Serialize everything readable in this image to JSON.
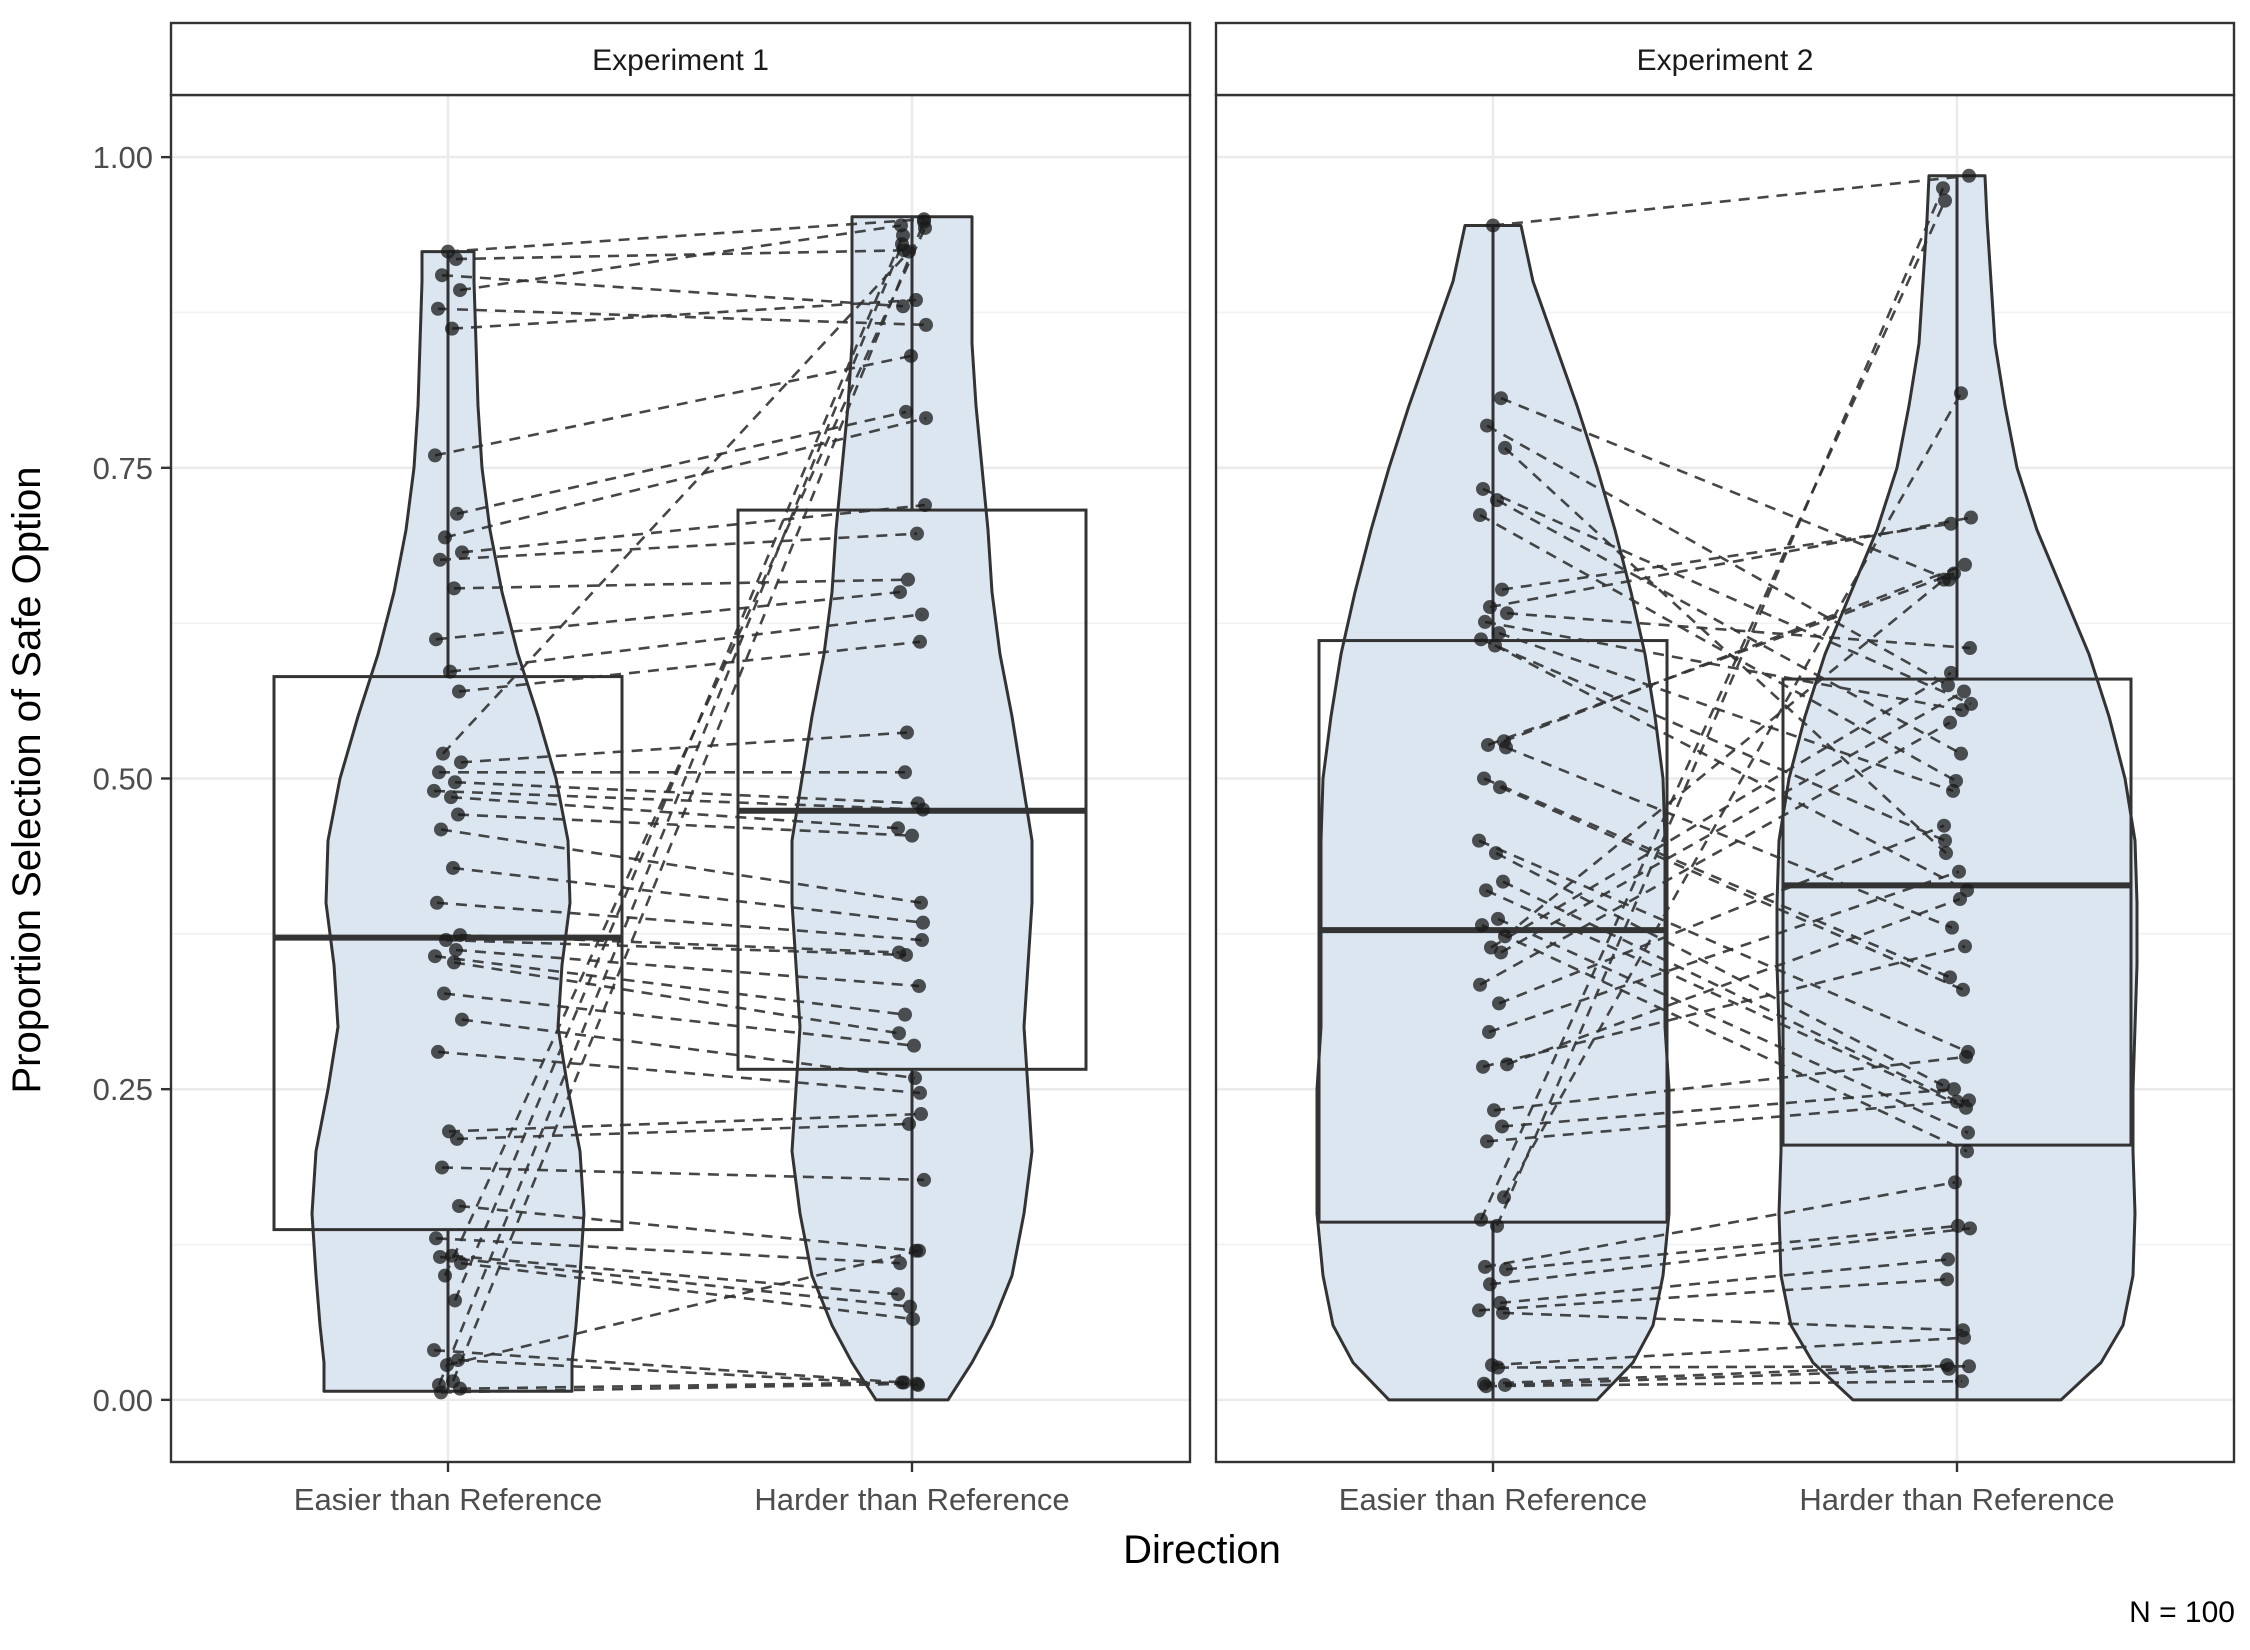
{
  "chart_data": {
    "type": "violin+box+paired-points",
    "title": "",
    "xlabel": "Direction",
    "ylabel": "Proportion Selection of Safe Option",
    "caption": "N = 100",
    "ylim": [
      -0.05,
      1.05
    ],
    "yticks": [
      0,
      0.25,
      0.5,
      0.75,
      1.0
    ],
    "ytick_labels": [
      "0.00",
      "0.25",
      "0.50",
      "0.75",
      "1.00"
    ],
    "categories": [
      "Easier than Reference",
      "Harder than Reference"
    ],
    "grid": true,
    "colors": {
      "violin_fill": "#dce6f0",
      "outline": "#333333",
      "point": "#1a1a1a",
      "line": "#333333",
      "panel_border": "#333333",
      "strip_fill": "#ffffff",
      "grid": "#ebebeb"
    },
    "panels": [
      {
        "label": "Experiment 1",
        "box": [
          {
            "q1": 0.137,
            "median": 0.372,
            "q3": 0.582,
            "min": 0.007,
            "max": 0.924
          },
          {
            "q1": 0.266,
            "median": 0.474,
            "q3": 0.716,
            "min": 0.0,
            "max": 0.952
          }
        ],
        "violin": [
          {
            "profile": [
              [
                0.007,
                0.62
              ],
              [
                0.03,
                0.62
              ],
              [
                0.06,
                0.64
              ],
              [
                0.1,
                0.66
              ],
              [
                0.15,
                0.68
              ],
              [
                0.2,
                0.66
              ],
              [
                0.25,
                0.6
              ],
              [
                0.3,
                0.55
              ],
              [
                0.35,
                0.57
              ],
              [
                0.4,
                0.61
              ],
              [
                0.45,
                0.6
              ],
              [
                0.5,
                0.54
              ],
              [
                0.55,
                0.45
              ],
              [
                0.6,
                0.35
              ],
              [
                0.65,
                0.27
              ],
              [
                0.7,
                0.21
              ],
              [
                0.75,
                0.17
              ],
              [
                0.8,
                0.15
              ],
              [
                0.85,
                0.14
              ],
              [
                0.9,
                0.13
              ],
              [
                0.924,
                0.13
              ]
            ]
          },
          {
            "profile": [
              [
                0.0,
                0.18
              ],
              [
                0.03,
                0.3
              ],
              [
                0.06,
                0.4
              ],
              [
                0.1,
                0.5
              ],
              [
                0.15,
                0.56
              ],
              [
                0.2,
                0.6
              ],
              [
                0.25,
                0.58
              ],
              [
                0.3,
                0.56
              ],
              [
                0.35,
                0.58
              ],
              [
                0.4,
                0.6
              ],
              [
                0.45,
                0.6
              ],
              [
                0.5,
                0.55
              ],
              [
                0.55,
                0.5
              ],
              [
                0.6,
                0.44
              ],
              [
                0.65,
                0.4
              ],
              [
                0.7,
                0.38
              ],
              [
                0.75,
                0.35
              ],
              [
                0.8,
                0.32
              ],
              [
                0.85,
                0.3
              ],
              [
                0.9,
                0.3
              ],
              [
                0.952,
                0.3
              ]
            ]
          }
        ],
        "pairs": [
          [
            0.924,
            0.95
          ],
          [
            0.918,
            0.925
          ],
          [
            0.905,
            0.88
          ],
          [
            0.893,
            0.945
          ],
          [
            0.878,
            0.865
          ],
          [
            0.862,
            0.885
          ],
          [
            0.76,
            0.84
          ],
          [
            0.713,
            0.795
          ],
          [
            0.694,
            0.79
          ],
          [
            0.682,
            0.72
          ],
          [
            0.676,
            0.697
          ],
          [
            0.653,
            0.66
          ],
          [
            0.612,
            0.65
          ],
          [
            0.586,
            0.632
          ],
          [
            0.57,
            0.61
          ],
          [
            0.52,
            0.924
          ],
          [
            0.513,
            0.537
          ],
          [
            0.505,
            0.505
          ],
          [
            0.497,
            0.48
          ],
          [
            0.49,
            0.475
          ],
          [
            0.485,
            0.46
          ],
          [
            0.471,
            0.454
          ],
          [
            0.459,
            0.4
          ],
          [
            0.428,
            0.384
          ],
          [
            0.4,
            0.37
          ],
          [
            0.374,
            0.36
          ],
          [
            0.37,
            0.358
          ],
          [
            0.362,
            0.333
          ],
          [
            0.357,
            0.31
          ],
          [
            0.352,
            0.295
          ],
          [
            0.327,
            0.285
          ],
          [
            0.306,
            0.259
          ],
          [
            0.28,
            0.247
          ],
          [
            0.216,
            0.23
          ],
          [
            0.21,
            0.222
          ],
          [
            0.187,
            0.177
          ],
          [
            0.156,
            0.12
          ],
          [
            0.13,
            0.11
          ],
          [
            0.116,
            0.085
          ],
          [
            0.115,
            0.075
          ],
          [
            0.11,
            0.065
          ],
          [
            0.1,
            0.943
          ],
          [
            0.08,
            0.937
          ],
          [
            0.04,
            0.014
          ],
          [
            0.032,
            0.012
          ],
          [
            0.028,
            0.12
          ],
          [
            0.015,
            0.948
          ],
          [
            0.012,
            0.93
          ],
          [
            0.009,
            0.014
          ],
          [
            0.006,
            0.013
          ]
        ]
      },
      {
        "label": "Experiment 2",
        "box": [
          {
            "q1": 0.143,
            "median": 0.378,
            "q3": 0.611,
            "min": 0.0,
            "max": 0.945
          },
          {
            "q1": 0.205,
            "median": 0.414,
            "q3": 0.58,
            "min": 0.0,
            "max": 0.985
          }
        ],
        "violin": [
          {
            "profile": [
              [
                0.0,
                0.52
              ],
              [
                0.03,
                0.7
              ],
              [
                0.06,
                0.8
              ],
              [
                0.1,
                0.85
              ],
              [
                0.15,
                0.88
              ],
              [
                0.2,
                0.88
              ],
              [
                0.25,
                0.88
              ],
              [
                0.3,
                0.86
              ],
              [
                0.35,
                0.86
              ],
              [
                0.4,
                0.86
              ],
              [
                0.45,
                0.86
              ],
              [
                0.5,
                0.85
              ],
              [
                0.55,
                0.81
              ],
              [
                0.6,
                0.76
              ],
              [
                0.65,
                0.69
              ],
              [
                0.7,
                0.61
              ],
              [
                0.75,
                0.52
              ],
              [
                0.8,
                0.42
              ],
              [
                0.85,
                0.31
              ],
              [
                0.9,
                0.2
              ],
              [
                0.945,
                0.14
              ]
            ]
          },
          {
            "profile": [
              [
                0.0,
                0.52
              ],
              [
                0.03,
                0.72
              ],
              [
                0.06,
                0.83
              ],
              [
                0.1,
                0.88
              ],
              [
                0.15,
                0.89
              ],
              [
                0.2,
                0.88
              ],
              [
                0.25,
                0.88
              ],
              [
                0.3,
                0.89
              ],
              [
                0.35,
                0.9
              ],
              [
                0.4,
                0.9
              ],
              [
                0.45,
                0.89
              ],
              [
                0.5,
                0.84
              ],
              [
                0.55,
                0.76
              ],
              [
                0.6,
                0.66
              ],
              [
                0.65,
                0.53
              ],
              [
                0.7,
                0.4
              ],
              [
                0.75,
                0.3
              ],
              [
                0.8,
                0.24
              ],
              [
                0.85,
                0.19
              ],
              [
                0.9,
                0.17
              ],
              [
                0.95,
                0.15
              ],
              [
                0.985,
                0.14
              ]
            ]
          }
        ],
        "pairs": [
          [
            0.945,
            0.985
          ],
          [
            0.806,
            0.66
          ],
          [
            0.784,
            0.575
          ],
          [
            0.766,
            0.44
          ],
          [
            0.733,
            0.56
          ],
          [
            0.724,
            0.52
          ],
          [
            0.712,
            0.498
          ],
          [
            0.652,
            0.705
          ],
          [
            0.638,
            0.71
          ],
          [
            0.633,
            0.605
          ],
          [
            0.626,
            0.555
          ],
          [
            0.617,
            0.49
          ],
          [
            0.612,
            0.45
          ],
          [
            0.607,
            0.41
          ],
          [
            0.53,
            0.672
          ],
          [
            0.527,
            0.665
          ],
          [
            0.525,
            0.38
          ],
          [
            0.5,
            0.34
          ],
          [
            0.493,
            0.33
          ],
          [
            0.45,
            0.28
          ],
          [
            0.44,
            0.253
          ],
          [
            0.417,
            0.24
          ],
          [
            0.41,
            0.235
          ],
          [
            0.387,
            0.215
          ],
          [
            0.382,
            0.2
          ],
          [
            0.373,
            0.66
          ],
          [
            0.364,
            0.585
          ],
          [
            0.36,
            0.57
          ],
          [
            0.334,
            0.545
          ],
          [
            0.319,
            0.462
          ],
          [
            0.296,
            0.425
          ],
          [
            0.27,
            0.403
          ],
          [
            0.268,
            0.365
          ],
          [
            0.233,
            0.276
          ],
          [
            0.22,
            0.25
          ],
          [
            0.208,
            0.241
          ],
          [
            0.163,
            0.81
          ],
          [
            0.145,
            0.965
          ],
          [
            0.14,
            0.975
          ],
          [
            0.107,
            0.175
          ],
          [
            0.105,
            0.14
          ],
          [
            0.093,
            0.138
          ],
          [
            0.078,
            0.113
          ],
          [
            0.072,
            0.097
          ],
          [
            0.07,
            0.056
          ],
          [
            0.028,
            0.05
          ],
          [
            0.026,
            0.027
          ],
          [
            0.013,
            0.028
          ],
          [
            0.012,
            0.025
          ],
          [
            0.011,
            0.015
          ]
        ]
      }
    ]
  }
}
